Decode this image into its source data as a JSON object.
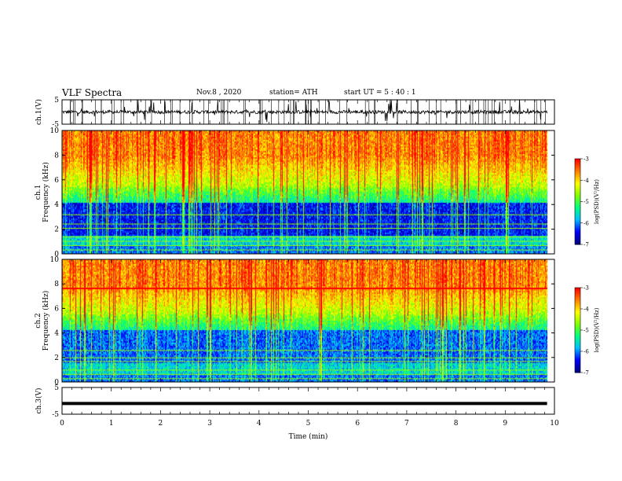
{
  "header": {
    "title": "VLF Spectra",
    "date": "Nov.8 , 2020",
    "station": "station= ATH",
    "start": "start UT = 5 : 40 : 1"
  },
  "chart_data": [
    {
      "type": "line",
      "panel": "ch1-waveform",
      "ylabel": "ch.1(V)",
      "ylim": [
        -5,
        5
      ],
      "yticks": [
        "5",
        "-5"
      ],
      "xlim": [
        0,
        10
      ],
      "description_values": {
        "baseline": 0,
        "amplitude_range": [
          -3,
          3
        ]
      }
    },
    {
      "type": "heatmap",
      "panel": "ch1-spectrogram",
      "ylabel": "ch.1 Frequency (kHz)",
      "ylabel_line1": "ch.1",
      "ylabel_line2": "Frequency (kHz)",
      "ylim": [
        0,
        10
      ],
      "yticks": [
        "0",
        "2",
        "4",
        "6",
        "8",
        "10"
      ],
      "xlim": [
        0,
        10
      ],
      "colorbar": {
        "label": "log(PSD)(V²/Hz)",
        "range": [
          -7,
          -3
        ],
        "ticks": [
          "-3",
          "-4",
          "-5",
          "-6",
          "-7"
        ]
      },
      "signal_end_min": 9.85
    },
    {
      "type": "heatmap",
      "panel": "ch2-spectrogram",
      "ylabel": "ch.2 Frequency (kHz)",
      "ylabel_line1": "ch.2",
      "ylabel_line2": "Frequency (kHz)",
      "ylim": [
        0,
        10
      ],
      "yticks": [
        "0",
        "2",
        "4",
        "6",
        "8",
        "10"
      ],
      "xlim": [
        0,
        10
      ],
      "colorbar": {
        "label": "log(PSD)(V²/Hz)",
        "range": [
          -7,
          -3
        ],
        "ticks": [
          "-3",
          "-4",
          "-5",
          "-6",
          "-7"
        ]
      },
      "signal_end_min": 9.85
    },
    {
      "type": "line",
      "panel": "ch3-waveform",
      "ylabel": "ch.3(V)",
      "ylim": [
        -5,
        5
      ],
      "yticks": [
        "5",
        "-5"
      ],
      "xlim": [
        0,
        10
      ],
      "xlabel": "Time (min)",
      "xticks": [
        "0",
        "1",
        "2",
        "3",
        "4",
        "5",
        "6",
        "7",
        "8",
        "9",
        "10"
      ],
      "description_values": {
        "level": -1,
        "end_min": 9.85
      }
    }
  ],
  "colors": {
    "colormap": [
      "#000080",
      "#0000ff",
      "#00c0ff",
      "#00ff80",
      "#80ff00",
      "#ffff00",
      "#ff8000",
      "#ff0000",
      "#ffffff"
    ]
  }
}
